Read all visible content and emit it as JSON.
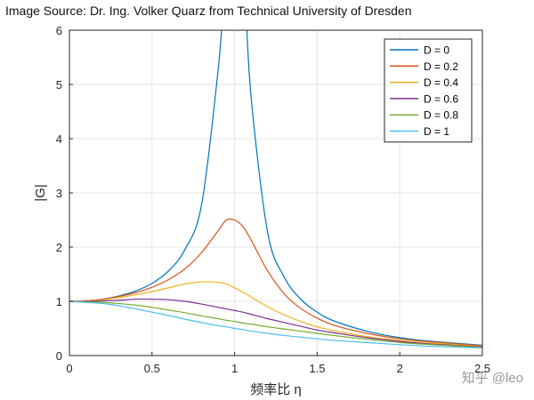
{
  "source_note": "Image Source: Dr. Ing. Volker Quarz from Technical University of Dresden",
  "watermark": "知乎 @leo",
  "chart_data": {
    "type": "line",
    "title": "",
    "xlabel": "频率比 η",
    "ylabel": "|G|",
    "xlim": [
      0,
      2.5
    ],
    "ylim": [
      0,
      6
    ],
    "xticks": [
      0,
      0.5,
      1,
      1.5,
      2,
      2.5
    ],
    "xticklabels": [
      "0",
      "0.5",
      "1",
      "1.5",
      "2",
      "2.5"
    ],
    "yticks": [
      0,
      1,
      2,
      3,
      4,
      5,
      6
    ],
    "yticklabels": [
      "0",
      "1",
      "2",
      "3",
      "4",
      "5",
      "6"
    ],
    "grid": true,
    "legend_position": "top-right",
    "x": [
      0,
      0.1,
      0.2,
      0.3,
      0.4,
      0.5,
      0.6,
      0.7,
      0.8,
      0.9,
      0.95,
      1.0,
      1.05,
      1.1,
      1.2,
      1.3,
      1.4,
      1.5,
      1.6,
      1.8,
      2.0,
      2.2,
      2.5
    ],
    "series": [
      {
        "name": "D = 0",
        "color": "#0072BD",
        "values": [
          1.0,
          1.01,
          1.04,
          1.1,
          1.19,
          1.33,
          1.56,
          1.96,
          2.78,
          5.26,
          null,
          null,
          null,
          4.76,
          2.27,
          1.45,
          1.04,
          0.8,
          0.64,
          0.45,
          0.33,
          0.26,
          0.19
        ]
      },
      {
        "name": "D = 0.2",
        "color": "#D95319",
        "values": [
          1.0,
          1.01,
          1.04,
          1.09,
          1.16,
          1.26,
          1.4,
          1.6,
          1.9,
          2.3,
          2.5,
          2.5,
          2.38,
          2.13,
          1.56,
          1.14,
          0.87,
          0.69,
          0.56,
          0.41,
          0.31,
          0.25,
          0.18
        ]
      },
      {
        "name": "D = 0.4",
        "color": "#EDB120",
        "values": [
          1.0,
          1.01,
          1.03,
          1.07,
          1.12,
          1.18,
          1.25,
          1.32,
          1.36,
          1.35,
          1.32,
          1.25,
          1.17,
          1.08,
          0.9,
          0.75,
          0.63,
          0.53,
          0.46,
          0.35,
          0.28,
          0.23,
          0.17
        ]
      },
      {
        "name": "D = 0.6",
        "color": "#7E2F8E",
        "values": [
          1.0,
          1.0,
          1.01,
          1.02,
          1.04,
          1.04,
          1.03,
          1.0,
          0.95,
          0.89,
          0.86,
          0.83,
          0.8,
          0.76,
          0.68,
          0.61,
          0.54,
          0.47,
          0.42,
          0.33,
          0.26,
          0.21,
          0.16
        ]
      },
      {
        "name": "D = 0.8",
        "color": "#77AC30",
        "values": [
          1.0,
          0.99,
          0.98,
          0.96,
          0.93,
          0.89,
          0.84,
          0.79,
          0.73,
          0.68,
          0.65,
          0.63,
          0.6,
          0.58,
          0.53,
          0.49,
          0.45,
          0.41,
          0.37,
          0.3,
          0.24,
          0.2,
          0.15
        ]
      },
      {
        "name": "D = 1",
        "color": "#4DBEEE",
        "values": [
          1.0,
          0.98,
          0.96,
          0.92,
          0.86,
          0.8,
          0.74,
          0.67,
          0.61,
          0.55,
          0.53,
          0.5,
          0.48,
          0.45,
          0.41,
          0.37,
          0.34,
          0.31,
          0.28,
          0.24,
          0.2,
          0.17,
          0.14
        ]
      }
    ]
  }
}
